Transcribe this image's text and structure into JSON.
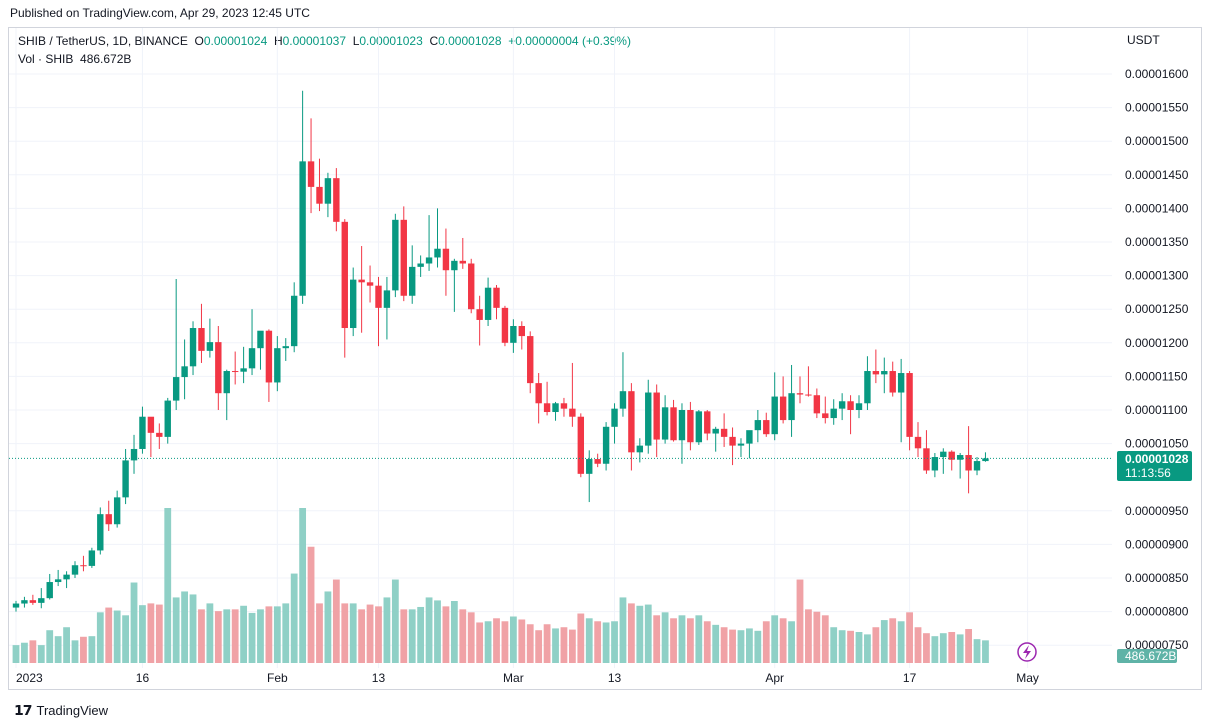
{
  "published": "Published on TradingView.com, Apr 29, 2023 12:45 UTC",
  "legend": {
    "symbol": "SHIB / TetherUS, 1D, BINANCE",
    "o_label": "O",
    "o": "0.00001024",
    "h_label": "H",
    "h": "0.00001037",
    "l_label": "L",
    "l": "0.00001023",
    "c_label": "C",
    "c": "0.00001028",
    "change": "+0.00000004 (+0.39%)",
    "vol_label": "Vol · SHIB",
    "vol": "486.672B"
  },
  "price_axis": {
    "currency": "USDT",
    "ticks": [
      "0.00001600",
      "0.00001550",
      "0.00001500",
      "0.00001450",
      "0.00001400",
      "0.00001350",
      "0.00001300",
      "0.00001250",
      "0.00001200",
      "0.00001150",
      "0.00001100",
      "0.00001050",
      "0.00000950",
      "0.00000900",
      "0.00000850",
      "0.00000800",
      "0.00000750"
    ],
    "last_price": "0.00001028",
    "countdown": "11:13:56",
    "volume_badge": "486.672B"
  },
  "time_axis": {
    "labels": [
      "2023",
      "16",
      "Feb",
      "13",
      "Mar",
      "13",
      "Apr",
      "17",
      "May"
    ]
  },
  "footer": {
    "brand": "TradingView"
  },
  "colors": {
    "up": "#089981",
    "down": "#f23645",
    "vol_up": "#8fd0c6",
    "vol_down": "#f0a2a6",
    "grid": "#f0f3fa",
    "last_line": "#089981"
  },
  "chart_data": {
    "type": "candlestick",
    "title": "SHIB / TetherUS, 1D, BINANCE",
    "y_unit": "USDT",
    "ylim": [
      7.4e-06,
      1.62e-05
    ],
    "x_start": "2023-01-01",
    "x_end": "2023-04-29",
    "grid": true,
    "candles": [
      [
        8.06e-06,
        8.16e-06,
        8e-06,
        8.12e-06
      ],
      [
        8.12e-06,
        8.22e-06,
        8.06e-06,
        8.17e-06
      ],
      [
        8.17e-06,
        8.25e-06,
        8.1e-06,
        8.13e-06
      ],
      [
        8.13e-06,
        8.35e-06,
        8.05e-06,
        8.2e-06
      ],
      [
        8.2e-06,
        8.56e-06,
        8.18e-06,
        8.44e-06
      ],
      [
        8.44e-06,
        8.62e-06,
        8.38e-06,
        8.48e-06
      ],
      [
        8.48e-06,
        8.6e-06,
        8.35e-06,
        8.55e-06
      ],
      [
        8.55e-06,
        8.75e-06,
        8.5e-06,
        8.69e-06
      ],
      [
        8.69e-06,
        8.83e-06,
        8.6e-06,
        8.68e-06
      ],
      [
        8.68e-06,
        8.95e-06,
        8.65e-06,
        8.91e-06
      ],
      [
        8.91e-06,
        9.55e-06,
        8.85e-06,
        9.45e-06
      ],
      [
        9.45e-06,
        9.65e-06,
        9.2e-06,
        9.3e-06
      ],
      [
        9.3e-06,
        9.8e-06,
        9.25e-06,
        9.7e-06
      ],
      [
        9.7e-06,
        1.042e-05,
        9.6e-06,
        1.025e-05
      ],
      [
        1.025e-05,
        1.063e-05,
        1.005e-05,
        1.042e-05
      ],
      [
        1.042e-05,
        1.105e-05,
        1.035e-05,
        1.09e-05
      ],
      [
        1.09e-05,
        1.082e-05,
        1.03e-05,
        1.066e-05
      ],
      [
        1.066e-05,
        1.08e-05,
        1.042e-05,
        1.06e-05
      ],
      [
        1.06e-05,
        1.118e-05,
        1.05e-05,
        1.114e-05
      ],
      [
        1.114e-05,
        1.295e-05,
        1.1e-05,
        1.149e-05
      ],
      [
        1.149e-05,
        1.205e-05,
        1.116e-05,
        1.165e-05
      ],
      [
        1.165e-05,
        1.232e-05,
        1.152e-05,
        1.222e-05
      ],
      [
        1.222e-05,
        1.258e-05,
        1.17e-05,
        1.188e-05
      ],
      [
        1.188e-05,
        1.236e-05,
        1.178e-05,
        1.201e-05
      ],
      [
        1.201e-05,
        1.225e-05,
        1.1e-05,
        1.125e-05
      ],
      [
        1.125e-05,
        1.16e-05,
        1.085e-05,
        1.158e-05
      ],
      [
        1.158e-05,
        1.187e-05,
        1.138e-05,
        1.157e-05
      ],
      [
        1.157e-05,
        1.194e-05,
        1.14e-05,
        1.162e-05
      ],
      [
        1.162e-05,
        1.25e-05,
        1.152e-05,
        1.192e-05
      ],
      [
        1.192e-05,
        1.217e-05,
        1.16e-05,
        1.218e-05
      ],
      [
        1.218e-05,
        1.22e-05,
        1.112e-05,
        1.141e-05
      ],
      [
        1.141e-05,
        1.21e-05,
        1.128e-05,
        1.192e-05
      ],
      [
        1.192e-05,
        1.207e-05,
        1.173e-05,
        1.195e-05
      ],
      [
        1.195e-05,
        1.29e-05,
        1.186e-05,
        1.27e-05
      ],
      [
        1.27e-05,
        1.575e-05,
        1.258e-05,
        1.47e-05
      ],
      [
        1.47e-05,
        1.534e-05,
        1.393e-05,
        1.432e-05
      ],
      [
        1.432e-05,
        1.474e-05,
        1.396e-05,
        1.407e-05
      ],
      [
        1.407e-05,
        1.453e-05,
        1.387e-05,
        1.445e-05
      ],
      [
        1.445e-05,
        1.46e-05,
        1.366e-05,
        1.38e-05
      ],
      [
        1.38e-05,
        1.384e-05,
        1.178e-05,
        1.222e-05
      ],
      [
        1.222e-05,
        1.312e-05,
        1.21e-05,
        1.294e-05
      ],
      [
        1.294e-05,
        1.344e-05,
        1.215e-05,
        1.29e-05
      ],
      [
        1.29e-05,
        1.315e-05,
        1.26e-05,
        1.285e-05
      ],
      [
        1.285e-05,
        1.298e-05,
        1.195e-05,
        1.252e-05
      ],
      [
        1.252e-05,
        1.298e-05,
        1.205e-05,
        1.278e-05
      ],
      [
        1.278e-05,
        1.392e-05,
        1.268e-05,
        1.383e-05
      ],
      [
        1.383e-05,
        1.403e-05,
        1.262e-05,
        1.27e-05
      ],
      [
        1.27e-05,
        1.345e-05,
        1.258e-05,
        1.313e-05
      ],
      [
        1.313e-05,
        1.33e-05,
        1.298e-05,
        1.318e-05
      ],
      [
        1.318e-05,
        1.39e-05,
        1.307e-05,
        1.327e-05
      ],
      [
        1.327e-05,
        1.4e-05,
        1.312e-05,
        1.34e-05
      ],
      [
        1.34e-05,
        1.37e-05,
        1.27e-05,
        1.308e-05
      ],
      [
        1.308e-05,
        1.325e-05,
        1.246e-05,
        1.322e-05
      ],
      [
        1.322e-05,
        1.356e-05,
        1.31e-05,
        1.318e-05
      ],
      [
        1.318e-05,
        1.325e-05,
        1.244e-05,
        1.25e-05
      ],
      [
        1.25e-05,
        1.27e-05,
        1.196e-05,
        1.234e-05
      ],
      [
        1.234e-05,
        1.297e-05,
        1.225e-05,
        1.282e-05
      ],
      [
        1.282e-05,
        1.286e-05,
        1.235e-05,
        1.252e-05
      ],
      [
        1.252e-05,
        1.255e-05,
        1.195e-05,
        1.2e-05
      ],
      [
        1.2e-05,
        1.235e-05,
        1.185e-05,
        1.225e-05
      ],
      [
        1.225e-05,
        1.232e-05,
        1.19e-05,
        1.21e-05
      ],
      [
        1.21e-05,
        1.217e-05,
        1.125e-05,
        1.14e-05
      ],
      [
        1.14e-05,
        1.155e-05,
        1.08e-05,
        1.11e-05
      ],
      [
        1.11e-05,
        1.142e-05,
        1.092e-05,
        1.097e-05
      ],
      [
        1.097e-05,
        1.112e-05,
        1.084e-05,
        1.11e-05
      ],
      [
        1.11e-05,
        1.118e-05,
        1.09e-05,
        1.102e-05
      ],
      [
        1.102e-05,
        1.17e-05,
        1.075e-05,
        1.09e-05
      ],
      [
        1.09e-05,
        1.095e-05,
        1e-05,
        1.005e-05
      ],
      [
        1.005e-05,
        1.04e-05,
        9.63e-06,
        1.027e-05
      ],
      [
        1.027e-05,
        1.035e-05,
        1.015e-05,
        1.02e-05
      ],
      [
        1.02e-05,
        1.082e-05,
        1.01e-05,
        1.075e-05
      ],
      [
        1.075e-05,
        1.11e-05,
        1.05e-05,
        1.102e-05
      ],
      [
        1.102e-05,
        1.186e-05,
        1.09e-05,
        1.128e-05
      ],
      [
        1.128e-05,
        1.14e-05,
        1.01e-05,
        1.037e-05
      ],
      [
        1.037e-05,
        1.058e-05,
        1.022e-05,
        1.047e-05
      ],
      [
        1.047e-05,
        1.145e-05,
        1.035e-05,
        1.126e-05
      ],
      [
        1.126e-05,
        1.138e-05,
        1.03e-05,
        1.056e-05
      ],
      [
        1.056e-05,
        1.122e-05,
        1.05e-05,
        1.104e-05
      ],
      [
        1.104e-05,
        1.115e-05,
        1.053e-05,
        1.055e-05
      ],
      [
        1.055e-05,
        1.11e-05,
        1.02e-05,
        1.1e-05
      ],
      [
        1.1e-05,
        1.112e-05,
        1.04e-05,
        1.052e-05
      ],
      [
        1.052e-05,
        1.1e-05,
        1.048e-05,
        1.098e-05
      ],
      [
        1.098e-05,
        1.1e-05,
        1.055e-05,
        1.065e-05
      ],
      [
        1.065e-05,
        1.075e-05,
        1.038e-05,
        1.072e-05
      ],
      [
        1.072e-05,
        1.095e-05,
        1.045e-05,
        1.06e-05
      ],
      [
        1.06e-05,
        1.074e-05,
        1.018e-05,
        1.047e-05
      ],
      [
        1.047e-05,
        1.058e-05,
        1.03e-05,
        1.05e-05
      ],
      [
        1.05e-05,
        1.068e-05,
        1.028e-05,
        1.07e-05
      ],
      [
        1.07e-05,
        1.1e-05,
        1.052e-05,
        1.085e-05
      ],
      [
        1.085e-05,
        1.096e-05,
        1.06e-05,
        1.064e-05
      ],
      [
        1.064e-05,
        1.156e-05,
        1.055e-05,
        1.12e-05
      ],
      [
        1.12e-05,
        1.15e-05,
        1.08e-05,
        1.085e-05
      ],
      [
        1.085e-05,
        1.167e-05,
        1.06e-05,
        1.125e-05
      ],
      [
        1.125e-05,
        1.15e-05,
        1.11e-05,
        1.123e-05
      ],
      [
        1.123e-05,
        1.165e-05,
        1.12e-05,
        1.122e-05
      ],
      [
        1.122e-05,
        1.132e-05,
        1.088e-05,
        1.095e-05
      ],
      [
        1.095e-05,
        1.12e-05,
        1.08e-05,
        1.088e-05
      ],
      [
        1.088e-05,
        1.116e-05,
        1.078e-05,
        1.102e-05
      ],
      [
        1.102e-05,
        1.125e-05,
        1.085e-05,
        1.113e-05
      ],
      [
        1.113e-05,
        1.122e-05,
        1.064e-05,
        1.1e-05
      ],
      [
        1.1e-05,
        1.122e-05,
        1.088e-05,
        1.11e-05
      ],
      [
        1.11e-05,
        1.18e-05,
        1.1e-05,
        1.158e-05
      ],
      [
        1.158e-05,
        1.19e-05,
        1.14e-05,
        1.153e-05
      ],
      [
        1.153e-05,
        1.178e-05,
        1.125e-05,
        1.158e-05
      ],
      [
        1.158e-05,
        1.172e-05,
        1.12e-05,
        1.126e-05
      ],
      [
        1.126e-05,
        1.176e-05,
        1.052e-05,
        1.155e-05
      ],
      [
        1.155e-05,
        1.158e-05,
        1.04e-05,
        1.06e-05
      ],
      [
        1.06e-05,
        1.082e-05,
        1.03e-05,
        1.043e-05
      ],
      [
        1.043e-05,
        1.07e-05,
        1.005e-05,
        1.01e-05
      ],
      [
        1.01e-05,
        1.036e-05,
        1e-05,
        1.03e-05
      ],
      [
        1.03e-05,
        1.043e-05,
        1.005e-05,
        1.038e-05
      ],
      [
        1.038e-05,
        1.04e-05,
        1.01e-05,
        1.026e-05
      ],
      [
        1.026e-05,
        1.036e-05,
        9.98e-06,
        1.033e-05
      ],
      [
        1.033e-05,
        1.076e-05,
        9.76e-06,
        1.01e-05
      ],
      [
        1.01e-05,
        1.03e-05,
        1.003e-05,
        1.024e-05
      ],
      [
        1.024e-05,
        1.037e-05,
        1.023e-05,
        1.028e-05
      ]
    ],
    "volume": [
      30,
      34,
      38,
      30,
      55,
      45,
      60,
      38,
      44,
      45,
      85,
      93,
      88,
      80,
      135,
      97,
      100,
      98,
      260,
      110,
      120,
      115,
      90,
      100,
      87,
      90,
      90,
      96,
      84,
      90,
      95,
      95,
      100,
      150,
      260,
      195,
      100,
      120,
      140,
      100,
      100,
      90,
      98,
      95,
      110,
      140,
      90,
      90,
      94,
      110,
      105,
      95,
      104,
      90,
      85,
      68,
      70,
      75,
      70,
      78,
      73,
      65,
      55,
      65,
      58,
      60,
      56,
      83,
      75,
      70,
      68,
      70,
      110,
      100,
      96,
      98,
      80,
      85,
      75,
      80,
      75,
      80,
      70,
      64,
      60,
      56,
      55,
      58,
      54,
      70,
      80,
      75,
      70,
      140,
      90,
      86,
      80,
      60,
      55,
      54,
      52,
      48,
      60,
      72,
      75,
      70,
      85,
      60,
      50,
      45,
      50,
      52,
      48,
      57,
      40,
      38
    ]
  }
}
